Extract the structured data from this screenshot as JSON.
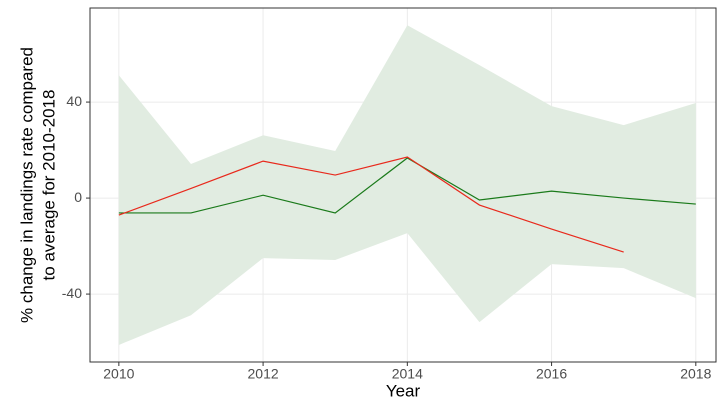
{
  "chart_data": {
    "type": "line",
    "xlabel": "Year",
    "ylabel": [
      "% change in landings rate compared",
      "to average for 2010-2018"
    ],
    "x": [
      2010,
      2011,
      2012,
      2013,
      2014,
      2015,
      2016,
      2017,
      2018
    ],
    "band": {
      "color": "#e1ece1",
      "upper": [
        51.2,
        14.2,
        26.2,
        19.6,
        72,
        55.4,
        38.3,
        30.4,
        39.6
      ],
      "lower": [
        -61.2,
        -48.8,
        -25,
        -25.8,
        -14.6,
        -51.7,
        -27.5,
        -29.2,
        -41.7
      ]
    },
    "series": [
      {
        "color": "#1a7a1a",
        "values": [
          -6.2,
          -6.2,
          1.2,
          -6.2,
          16.7,
          -0.8,
          2.9,
          0,
          -2.5
        ]
      },
      {
        "color": "#e8291c",
        "values": [
          -7.1,
          4,
          15.4,
          9.6,
          17.1,
          -2.9,
          -12.9,
          -22.5,
          null
        ]
      }
    ],
    "xlim": [
      2009.6,
      2018.28
    ],
    "xticks": [
      2010,
      2012,
      2014,
      2016,
      2018
    ],
    "ylim": [
      -68.3,
      79.2
    ],
    "yticks": [
      -40,
      0,
      40
    ],
    "grid": true
  }
}
